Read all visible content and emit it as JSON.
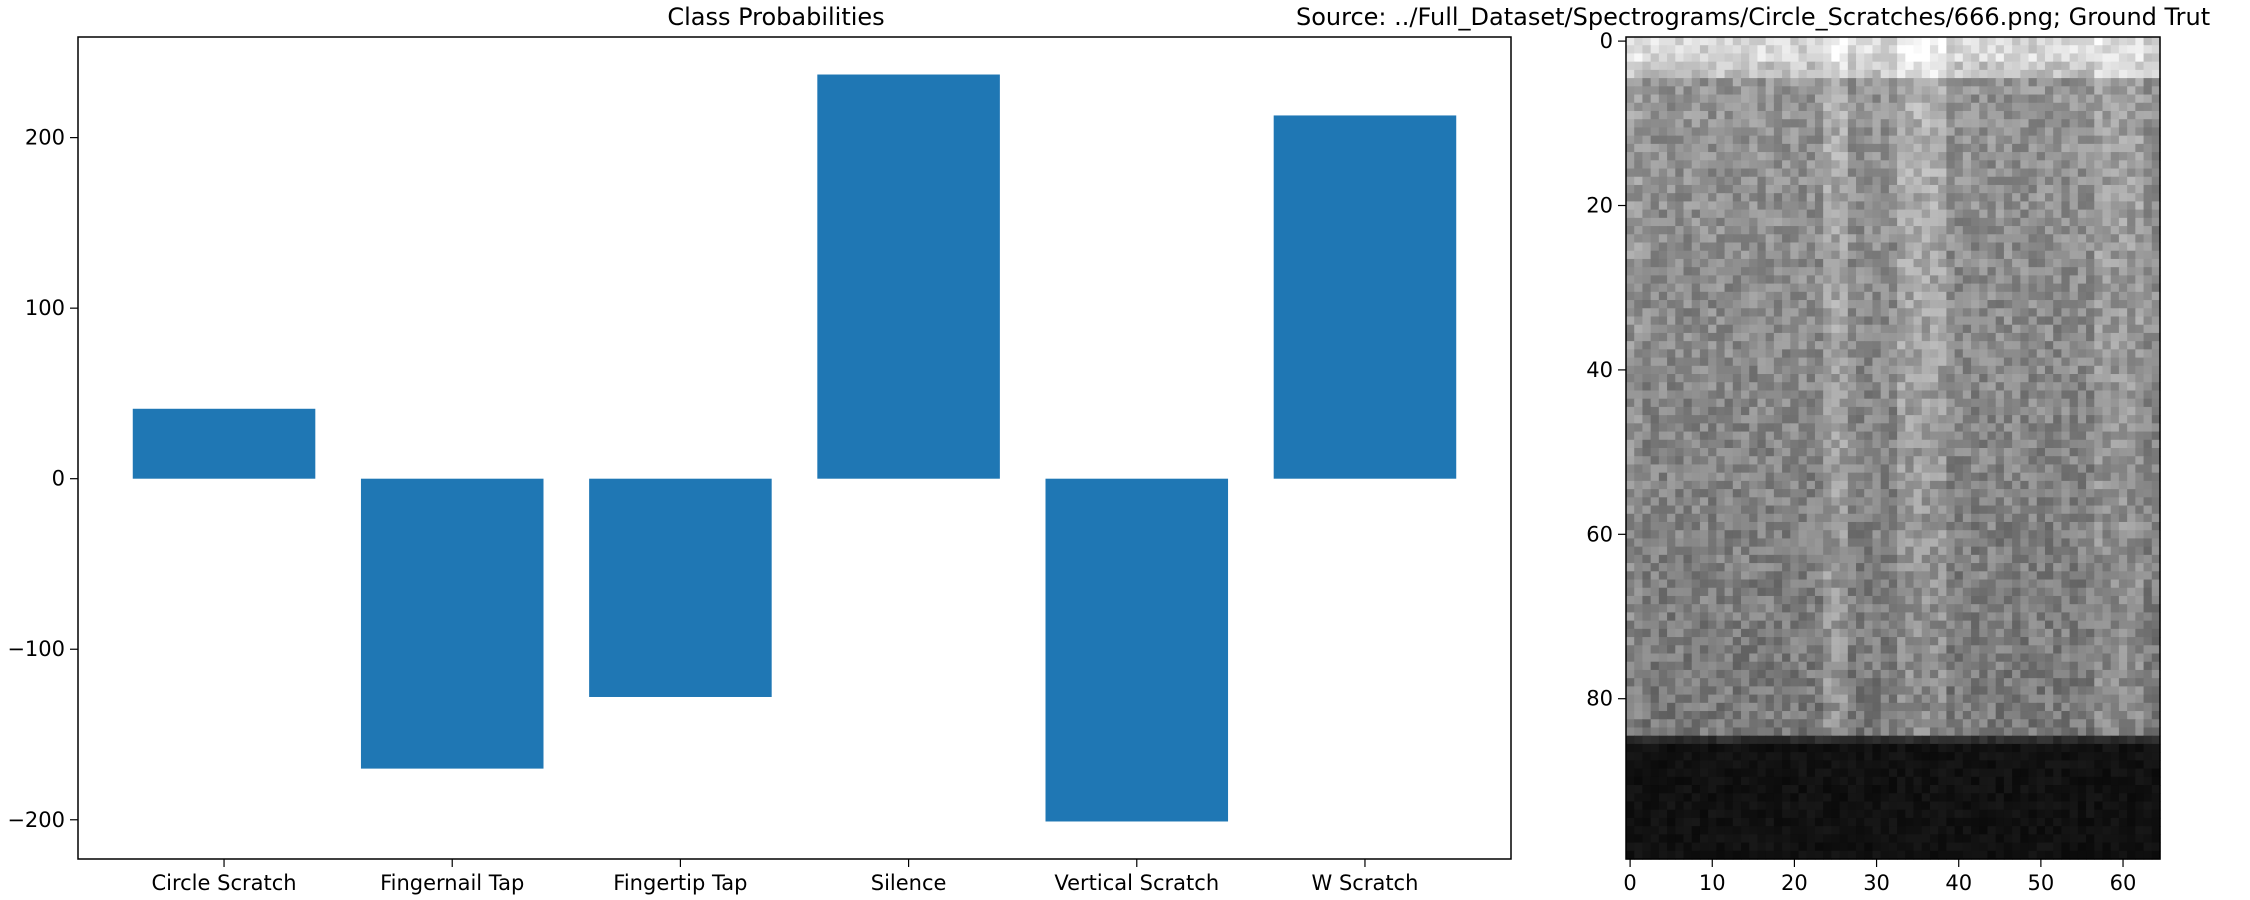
{
  "chart_data": [
    {
      "type": "bar",
      "title": "Class Probabilities",
      "xlabel": "",
      "ylabel": "",
      "categories": [
        "Circle Scratch",
        "Fingernail Tap",
        "Fingertip Tap",
        "Silence",
        "Vertical Scratch",
        "W Scratch"
      ],
      "values": [
        41,
        -170,
        -128,
        237,
        -201,
        213
      ],
      "ylim": [
        -223,
        259
      ],
      "yticks": [
        -200,
        -100,
        0,
        100,
        200
      ],
      "grid": false,
      "color": "#1f77b4"
    },
    {
      "type": "heatmap",
      "title": "Source: ../Full_Dataset/Spectrograms/Circle_Scratches/666.png; Ground Trut",
      "xlabel": "",
      "ylabel": "",
      "xlim": [
        0,
        64
      ],
      "ylim": [
        0,
        99
      ],
      "xticks": [
        0,
        10,
        20,
        30,
        40,
        50,
        60
      ],
      "yticks": [
        0,
        20,
        40,
        60,
        80
      ],
      "colormap": "gray"
    }
  ]
}
